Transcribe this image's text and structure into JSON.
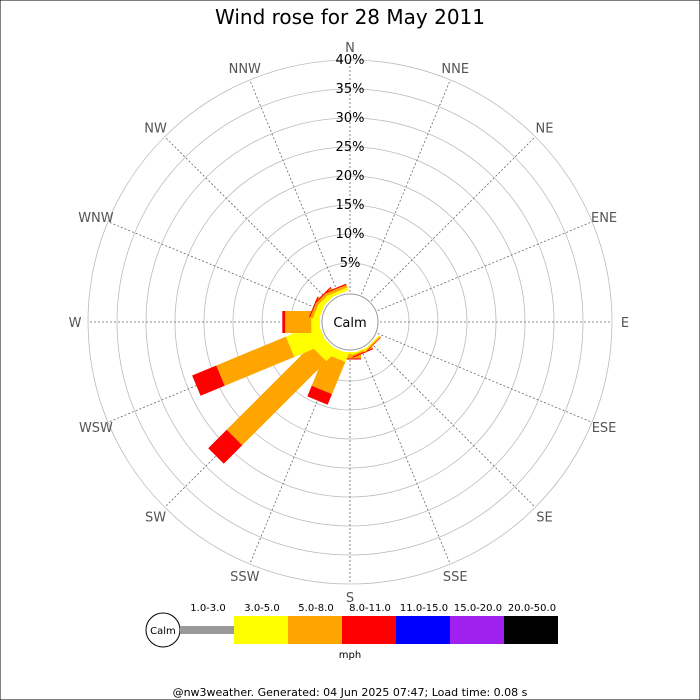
{
  "chart_data": {
    "type": "wind-rose",
    "title": "Wind rose for 28 May 2011",
    "directions": [
      "N",
      "NNE",
      "NE",
      "ENE",
      "E",
      "ESE",
      "SE",
      "SSE",
      "S",
      "SSW",
      "SW",
      "WSW",
      "W",
      "WNW",
      "NW",
      "NNW"
    ],
    "radial_ticks": [
      "5%",
      "10%",
      "15%",
      "20%",
      "25%",
      "30%",
      "35%",
      "40%"
    ],
    "rmax": 40,
    "calm_label": "Calm",
    "speed_bins": [
      {
        "label": "1.0-3.0",
        "color": "#999999"
      },
      {
        "label": "3.0-5.0",
        "color": "#ffff00"
      },
      {
        "label": "5.0-8.0",
        "color": "#ffa500"
      },
      {
        "label": "8.0-11.0",
        "color": "#ff0000"
      },
      {
        "label": "11.0-15.0",
        "color": "#0000ff"
      },
      {
        "label": "15.0-20.0",
        "color": "#a020f0"
      },
      {
        "label": "20.0-50.0",
        "color": "#000000"
      }
    ],
    "unit": "mph",
    "series": [
      {
        "direction": "S",
        "values": [
          0,
          0.3,
          0.8,
          0.2,
          0,
          0,
          0
        ]
      },
      {
        "direction": "SSW",
        "values": [
          0,
          1.5,
          6.0,
          2.0,
          0,
          0,
          0
        ]
      },
      {
        "direction": "SW",
        "values": [
          0,
          2.5,
          20.5,
          4.5,
          0,
          0,
          0
        ]
      },
      {
        "direction": "WSW",
        "values": [
          0,
          6.0,
          13.0,
          4.5,
          0,
          0,
          0
        ]
      },
      {
        "direction": "W",
        "values": [
          0,
          1.5,
          4.5,
          0.5,
          0,
          0,
          0
        ]
      },
      {
        "direction": "WNW",
        "values": [
          0,
          1.0,
          0.5,
          0.2,
          0,
          0,
          0
        ]
      },
      {
        "direction": "NW",
        "values": [
          0,
          0.8,
          0.5,
          0.2,
          0,
          0,
          0
        ]
      },
      {
        "direction": "NNW",
        "values": [
          0,
          0.5,
          0.5,
          0.2,
          0,
          0,
          0
        ]
      },
      {
        "direction": "SSE",
        "values": [
          0,
          0.2,
          0.3,
          0.2,
          0,
          0,
          0
        ]
      },
      {
        "direction": "SE",
        "values": [
          0,
          0.2,
          0.2,
          0.1,
          0,
          0,
          0
        ]
      }
    ]
  },
  "footer": "@nw3weather. Generated: 04 Jun 2025 07:47; Load time: 0.08 s"
}
